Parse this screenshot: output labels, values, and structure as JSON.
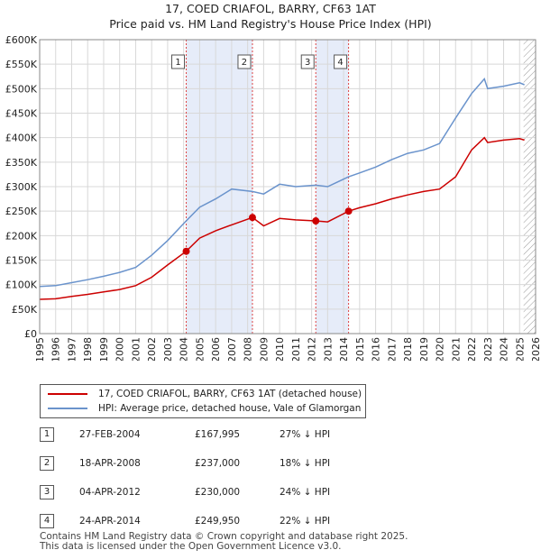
{
  "title_line1": "17, COED CRIAFOL, BARRY, CF63 1AT",
  "title_line2": "Price paid vs. HM Land Registry's House Price Index (HPI)",
  "legend": {
    "property": "17, COED CRIAFOL, BARRY, CF63 1AT (detached house)",
    "hpi": "HPI: Average price, detached house, Vale of Glamorgan"
  },
  "colors": {
    "property": "#cc0000",
    "hpi": "#6a93cc",
    "band": "#e6ecf9",
    "vline": "#dd4444",
    "grid": "#d8d8d8"
  },
  "sales": [
    {
      "num": "1",
      "date": "27-FEB-2004",
      "price": "£167,995",
      "hpi": "27% ↓ HPI"
    },
    {
      "num": "2",
      "date": "18-APR-2008",
      "price": "£237,000",
      "hpi": "18% ↓ HPI"
    },
    {
      "num": "3",
      "date": "04-APR-2012",
      "price": "£230,000",
      "hpi": "24% ↓ HPI"
    },
    {
      "num": "4",
      "date": "24-APR-2014",
      "price": "£249,950",
      "hpi": "22% ↓ HPI"
    }
  ],
  "footer_line1": "Contains HM Land Registry data © Crown copyright and database right 2025.",
  "footer_line2": "This data is licensed under the Open Government Licence v3.0.",
  "chart_data": {
    "type": "line",
    "title": "Price paid vs. HM Land Registry's House Price Index (HPI)",
    "xlabel": "",
    "ylabel": "",
    "xlim": [
      1995,
      2026
    ],
    "ylim": [
      0,
      600000
    ],
    "x_ticks": [
      "1995",
      "1996",
      "1997",
      "1998",
      "1999",
      "2000",
      "2001",
      "2002",
      "2003",
      "2004",
      "2005",
      "2006",
      "2007",
      "2008",
      "2009",
      "2010",
      "2011",
      "2012",
      "2013",
      "2014",
      "2015",
      "2016",
      "2017",
      "2018",
      "2019",
      "2020",
      "2021",
      "2022",
      "2023",
      "2024",
      "2025",
      "2026"
    ],
    "y_ticks": [
      {
        "value": 0,
        "label": "£0"
      },
      {
        "value": 50000,
        "label": "£50K"
      },
      {
        "value": 100000,
        "label": "£100K"
      },
      {
        "value": 150000,
        "label": "£150K"
      },
      {
        "value": 200000,
        "label": "£200K"
      },
      {
        "value": 250000,
        "label": "£250K"
      },
      {
        "value": 300000,
        "label": "£300K"
      },
      {
        "value": 350000,
        "label": "£350K"
      },
      {
        "value": 400000,
        "label": "£400K"
      },
      {
        "value": 450000,
        "label": "£450K"
      },
      {
        "value": 500000,
        "label": "£500K"
      },
      {
        "value": 550000,
        "label": "£550K"
      },
      {
        "value": 600000,
        "label": "£600K"
      }
    ],
    "shaded_bands": [
      [
        2004.16,
        2008.3
      ],
      [
        2012.26,
        2014.31
      ]
    ],
    "future_hatch_from": 2025.25,
    "sale_markers": [
      {
        "label": "1",
        "x": 2004.16,
        "y": 167995
      },
      {
        "label": "2",
        "x": 2008.3,
        "y": 237000
      },
      {
        "label": "3",
        "x": 2012.26,
        "y": 230000
      },
      {
        "label": "4",
        "x": 2014.31,
        "y": 249950
      }
    ],
    "series": [
      {
        "name": "17, COED CRIAFOL, BARRY, CF63 1AT (detached house)",
        "x": [
          1995,
          1996,
          1997,
          1998,
          1999,
          2000,
          2001,
          2002,
          2003,
          2004.16,
          2005,
          2006,
          2007,
          2008.3,
          2009,
          2010,
          2011,
          2012.26,
          2013,
          2014.31,
          2015,
          2016,
          2017,
          2018,
          2019,
          2020,
          2021,
          2022,
          2022.8,
          2023,
          2024,
          2025,
          2025.3
        ],
        "y": [
          70000,
          71000,
          76000,
          80000,
          85000,
          90000,
          98000,
          115000,
          140000,
          167995,
          195000,
          210000,
          222000,
          237000,
          220000,
          235000,
          232000,
          230000,
          228000,
          249950,
          257000,
          265000,
          275000,
          283000,
          290000,
          295000,
          320000,
          375000,
          400000,
          390000,
          395000,
          398000,
          395000
        ]
      },
      {
        "name": "HPI: Average price, detached house, Vale of Glamorgan",
        "x": [
          1995,
          1996,
          1997,
          1998,
          1999,
          2000,
          2001,
          2002,
          2003,
          2004.16,
          2005,
          2006,
          2007,
          2008.3,
          2009,
          2010,
          2011,
          2012.26,
          2013,
          2014.31,
          2015,
          2016,
          2017,
          2018,
          2019,
          2020,
          2021,
          2022,
          2022.8,
          2023,
          2024,
          2025,
          2025.3
        ],
        "y": [
          96000,
          98000,
          104000,
          110000,
          117000,
          125000,
          135000,
          160000,
          190000,
          230000,
          258000,
          275000,
          295000,
          290000,
          285000,
          305000,
          300000,
          303000,
          300000,
          320000,
          328000,
          340000,
          355000,
          368000,
          375000,
          388000,
          440000,
          490000,
          520000,
          500000,
          505000,
          512000,
          508000
        ]
      }
    ]
  }
}
